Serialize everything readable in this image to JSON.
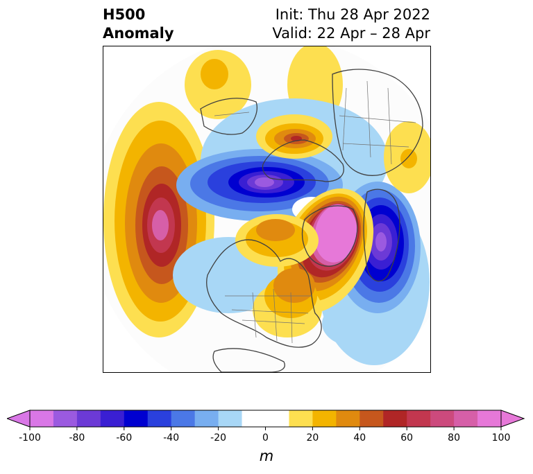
{
  "header": {
    "variable": "H500",
    "kind": "Anomaly",
    "init": "Init: Thu 28 Apr 2022",
    "valid": "Valid: 22 Apr – 28 Apr"
  },
  "colorbar": {
    "unit": "m",
    "ticks": [
      "-100",
      "-80",
      "-60",
      "-40",
      "-20",
      "0",
      "20",
      "40",
      "60",
      "80",
      "100"
    ],
    "min": -100,
    "max": 100,
    "step": 10,
    "extend": "both",
    "colors": [
      "#d977e6",
      "#9b5ae0",
      "#6c3ad6",
      "#3a1fd3",
      "#0000d0",
      "#2a40dd",
      "#4b78e6",
      "#78aef0",
      "#a8d7f6",
      "#ffffff",
      "#ffffff",
      "#fddf50",
      "#f3b400",
      "#e08a0f",
      "#c6571d",
      "#b02626",
      "#c2374f",
      "#cc4a7d",
      "#d65fa8",
      "#e678d8"
    ],
    "under_color": "#d977e6",
    "over_color": "#e678d8"
  },
  "map": {
    "projection": "north polar stereographic",
    "background": "#ffffff",
    "coastline_color": "#404040"
  }
}
